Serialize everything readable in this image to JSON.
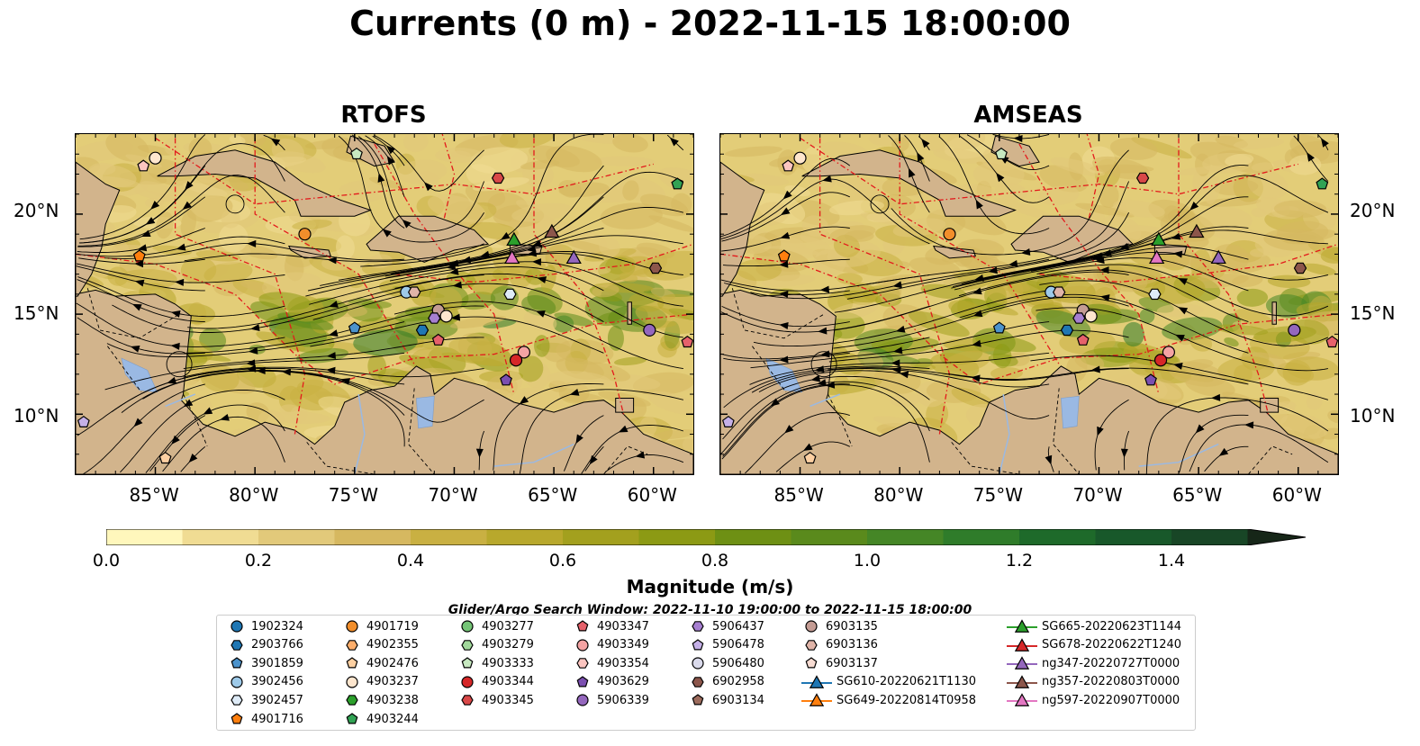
{
  "title": "Currents (0 m) - 2022-11-15 18:00:00",
  "panels": [
    {
      "title": "RTOFS"
    },
    {
      "title": "AMSEAS"
    }
  ],
  "lon_ticks": [
    "85°W",
    "80°W",
    "75°W",
    "70°W",
    "65°W",
    "60°W"
  ],
  "lat_ticks": [
    "20°N",
    "15°N",
    "10°N"
  ],
  "colorbar": {
    "label": "Magnitude (m/s)",
    "ticks": [
      "0.0",
      "0.2",
      "0.4",
      "0.6",
      "0.8",
      "1.0",
      "1.2",
      "1.4"
    ],
    "colors": [
      "#fff7bc",
      "#f0dc93",
      "#e2c97a",
      "#d6b860",
      "#c9b042",
      "#b8a82c",
      "#a3a01e",
      "#8c9a14",
      "#6e9014",
      "#5a8a1c",
      "#458626",
      "#2f7c2a",
      "#1e6a2a",
      "#18582a",
      "#184626",
      "#173520",
      "#162618"
    ]
  },
  "legend": {
    "title": "Glider/Argo Search Window: 2022-11-10 19:00:00 to 2022-11-15 18:00:00",
    "columns": [
      [
        {
          "label": "1902324",
          "marker": "circle",
          "color": "#1f77b4"
        },
        {
          "label": "2903766",
          "marker": "hexagon",
          "color": "#1f77b4"
        },
        {
          "label": "3901859",
          "marker": "pentagon",
          "color": "#4c93cc"
        },
        {
          "label": "3902456",
          "marker": "circle",
          "color": "#9ecae9"
        },
        {
          "label": "3902457",
          "marker": "hexagon",
          "color": "#deebf7"
        },
        {
          "label": "4901716",
          "marker": "pentagon",
          "color": "#ff7f0e"
        }
      ],
      [
        {
          "label": "4901719",
          "marker": "circle",
          "color": "#f28e2b"
        },
        {
          "label": "4902355",
          "marker": "hexagon",
          "color": "#fdae6b"
        },
        {
          "label": "4902476",
          "marker": "pentagon",
          "color": "#fdd0a2"
        },
        {
          "label": "4903237",
          "marker": "circle",
          "color": "#fee6ce"
        },
        {
          "label": "4903238",
          "marker": "hexagon",
          "color": "#2ca02c"
        },
        {
          "label": "4903244",
          "marker": "pentagon",
          "color": "#31a354"
        }
      ],
      [
        {
          "label": "4903277",
          "marker": "circle",
          "color": "#74c476"
        },
        {
          "label": "4903279",
          "marker": "hexagon",
          "color": "#a1d99b"
        },
        {
          "label": "4903333",
          "marker": "pentagon",
          "color": "#c7e9c0"
        },
        {
          "label": "4903344",
          "marker": "circle",
          "color": "#d62728"
        },
        {
          "label": "4903345",
          "marker": "hexagon",
          "color": "#d94848"
        }
      ],
      [
        {
          "label": "4903347",
          "marker": "pentagon",
          "color": "#e6616b"
        },
        {
          "label": "4903349",
          "marker": "circle",
          "color": "#f4a3a3"
        },
        {
          "label": "4903354",
          "marker": "hexagon",
          "color": "#fcc5c0"
        },
        {
          "label": "4903629",
          "marker": "pentagon",
          "color": "#7b4fb0"
        },
        {
          "label": "5906339",
          "marker": "circle",
          "color": "#9467bd"
        }
      ],
      [
        {
          "label": "5906437",
          "marker": "hexagon",
          "color": "#a67fd0"
        },
        {
          "label": "5906478",
          "marker": "pentagon",
          "color": "#c5b0e8"
        },
        {
          "label": "5906480",
          "marker": "circle",
          "color": "#dadaeb"
        },
        {
          "label": "6902958",
          "marker": "hexagon",
          "color": "#8c564b"
        },
        {
          "label": "6903134",
          "marker": "pentagon",
          "color": "#9c6b5c"
        }
      ],
      [
        {
          "label": "6903135",
          "marker": "circle",
          "color": "#c49c94"
        },
        {
          "label": "6903136",
          "marker": "hexagon",
          "color": "#e0b4a8"
        },
        {
          "label": "6903137",
          "marker": "pentagon",
          "color": "#f7dcd3"
        },
        {
          "label": "SG610-20220621T1130",
          "marker": "triangle-line",
          "color": "#1f77b4"
        },
        {
          "label": "SG649-20220814T0958",
          "marker": "triangle-line",
          "color": "#ff7f0e"
        }
      ],
      [
        {
          "label": "SG665-20220623T1144",
          "marker": "triangle-line",
          "color": "#2ca02c"
        },
        {
          "label": "SG678-20220622T1240",
          "marker": "triangle-line",
          "color": "#d62728"
        },
        {
          "label": "ng347-20220727T0000",
          "marker": "triangle-line",
          "color": "#9467bd"
        },
        {
          "label": "ng357-20220803T0000",
          "marker": "triangle-line",
          "color": "#8c564b"
        },
        {
          "label": "ng597-20220907T0000",
          "marker": "triangle-line",
          "color": "#e377c2"
        }
      ]
    ]
  },
  "map_extent": {
    "lon_min": -89,
    "lon_max": -58,
    "lat_min": 7,
    "lat_max": 24
  },
  "markers": [
    {
      "lon": -85,
      "lat": 22.8,
      "shape": "circle",
      "color": "#fee6ce"
    },
    {
      "lon": -85.6,
      "lat": 22.4,
      "shape": "pentagon",
      "color": "#fcc5c0"
    },
    {
      "lon": -74.9,
      "lat": 23,
      "shape": "pentagon",
      "color": "#c7e9c0"
    },
    {
      "lon": -67.8,
      "lat": 21.8,
      "shape": "hexagon",
      "color": "#d94848"
    },
    {
      "lon": -58.8,
      "lat": 21.5,
      "shape": "pentagon",
      "color": "#31a354"
    },
    {
      "lon": -77.5,
      "lat": 19,
      "shape": "circle",
      "color": "#f28e2b"
    },
    {
      "lon": -85.8,
      "lat": 17.9,
      "shape": "pentagon",
      "color": "#ff7f0e"
    },
    {
      "lon": -72.4,
      "lat": 16.1,
      "shape": "circle",
      "color": "#9ecae9"
    },
    {
      "lon": -72,
      "lat": 16.1,
      "shape": "hexagon",
      "color": "#e0b4a8"
    },
    {
      "lon": -67.2,
      "lat": 16,
      "shape": "hexagon",
      "color": "#deebf7"
    },
    {
      "lon": -70.8,
      "lat": 15.2,
      "shape": "circle",
      "color": "#c49c94"
    },
    {
      "lon": -71,
      "lat": 14.8,
      "shape": "hexagon",
      "color": "#a67fd0"
    },
    {
      "lon": -70.4,
      "lat": 14.9,
      "shape": "circle",
      "color": "#fee6ce"
    },
    {
      "lon": -71.6,
      "lat": 14.2,
      "shape": "hexagon",
      "color": "#1f77b4"
    },
    {
      "lon": -70.8,
      "lat": 13.7,
      "shape": "pentagon",
      "color": "#e6616b"
    },
    {
      "lon": -75,
      "lat": 14.3,
      "shape": "pentagon",
      "color": "#4c93cc"
    },
    {
      "lon": -60.2,
      "lat": 14.2,
      "shape": "circle",
      "color": "#9467bd"
    },
    {
      "lon": -58.3,
      "lat": 13.6,
      "shape": "pentagon",
      "color": "#e6616b"
    },
    {
      "lon": -66.5,
      "lat": 13.1,
      "shape": "circle",
      "color": "#f4a3a3"
    },
    {
      "lon": -66.9,
      "lat": 12.7,
      "shape": "circle",
      "color": "#d62728"
    },
    {
      "lon": -67.4,
      "lat": 11.7,
      "shape": "pentagon",
      "color": "#7b4fb0"
    },
    {
      "lon": -59.9,
      "lat": 17.3,
      "shape": "hexagon",
      "color": "#8c564b"
    },
    {
      "lon": -88.6,
      "lat": 9.6,
      "shape": "pentagon",
      "color": "#c5b0e8"
    },
    {
      "lon": -84.5,
      "lat": 7.8,
      "shape": "pentagon",
      "color": "#fdd0a2"
    },
    {
      "lon": -67,
      "lat": 18.7,
      "shape": "triangle",
      "color": "#2ca02c"
    },
    {
      "lon": -65.1,
      "lat": 19.1,
      "shape": "triangle",
      "color": "#8c564b"
    },
    {
      "lon": -67.1,
      "lat": 17.8,
      "shape": "triangle",
      "color": "#e377c2"
    },
    {
      "lon": -64,
      "lat": 17.8,
      "shape": "triangle",
      "color": "#9467bd"
    }
  ]
}
